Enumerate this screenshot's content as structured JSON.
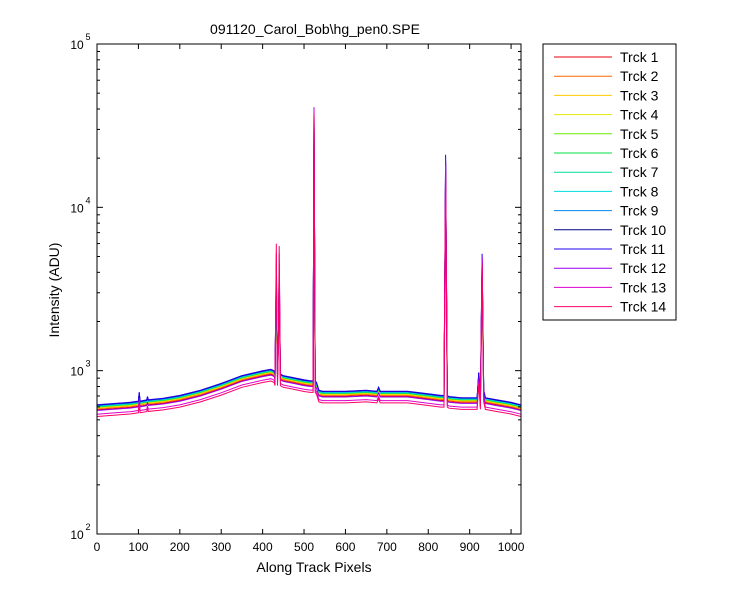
{
  "chart_data": {
    "type": "line",
    "title": "091120_Carol_Bob\\hg_pen0.SPE",
    "xlabel": "Along Track Pixels",
    "ylabel": "Intensity (ADU)",
    "xlim": [
      0,
      1024
    ],
    "ylim": [
      100,
      100000
    ],
    "yscale": "log",
    "grid": false,
    "legend_position": "outside-right",
    "x_ticks": [
      0,
      100,
      200,
      300,
      400,
      500,
      600,
      700,
      800,
      900,
      1000
    ],
    "x_tick_labels": [
      "0",
      "100",
      "200",
      "300",
      "400",
      "500",
      "600",
      "700",
      "800",
      "900",
      "1000"
    ],
    "y_ticks": [
      {
        "value": 100,
        "base": "10",
        "exp": "2"
      },
      {
        "value": 1000,
        "base": "10",
        "exp": "3"
      },
      {
        "value": 10000,
        "base": "10",
        "exp": "4"
      },
      {
        "value": 100000,
        "base": "10",
        "exp": "5"
      }
    ],
    "x": [
      0,
      40,
      80,
      100,
      102,
      104,
      120,
      122,
      124,
      160,
      200,
      250,
      300,
      350,
      400,
      420,
      428,
      430,
      433,
      436,
      438,
      440,
      443,
      446,
      450,
      470,
      500,
      515,
      522,
      524,
      527,
      530,
      536,
      545,
      560,
      600,
      650,
      676,
      680,
      684,
      700,
      750,
      800,
      830,
      838,
      842,
      846,
      850,
      880,
      918,
      922,
      926,
      930,
      934,
      938,
      960,
      1000,
      1024
    ],
    "series": [
      {
        "name": "Trck 1",
        "color": "#e8000b",
        "scale": 1.01,
        "peaks": {
          "433": 3600,
          "440": 3600,
          "524": 38000,
          "842": 17000,
          "930": 4500
        }
      },
      {
        "name": "Trck 2",
        "color": "#ff6600",
        "scale": 1.025,
        "peaks": {
          "433": 3000,
          "440": 3000,
          "524": 30000,
          "842": 14000,
          "930": 3800
        }
      },
      {
        "name": "Trck 3",
        "color": "#ffcc00",
        "scale": 1.035,
        "peaks": {
          "433": 2700,
          "440": 2700,
          "524": 25000,
          "842": 12500,
          "930": 3500
        }
      },
      {
        "name": "Trck 4",
        "color": "#e6e600",
        "scale": 1.045,
        "peaks": {
          "433": 2600,
          "440": 2600,
          "524": 24000,
          "842": 12000,
          "930": 3300
        }
      },
      {
        "name": "Trck 5",
        "color": "#66ee00",
        "scale": 1.05,
        "peaks": {
          "433": 2700,
          "440": 2700,
          "524": 25000,
          "842": 12500,
          "930": 3400
        }
      },
      {
        "name": "Trck 6",
        "color": "#00e040",
        "scale": 1.055,
        "peaks": {
          "433": 2900,
          "440": 2900,
          "524": 27000,
          "842": 13500,
          "930": 3700
        }
      },
      {
        "name": "Trck 7",
        "color": "#00dd99",
        "scale": 1.06,
        "peaks": {
          "433": 3100,
          "440": 3100,
          "524": 29000,
          "842": 14500,
          "930": 3900
        }
      },
      {
        "name": "Trck 8",
        "color": "#00dddd",
        "scale": 1.065,
        "peaks": {
          "433": 3300,
          "440": 3300,
          "524": 31000,
          "842": 15500,
          "930": 4100
        }
      },
      {
        "name": "Trck 9",
        "color": "#0088ee",
        "scale": 1.075,
        "peaks": {
          "433": 3600,
          "440": 3600,
          "524": 34000,
          "842": 17500,
          "930": 4600
        }
      },
      {
        "name": "Trck 10",
        "color": "#000088",
        "scale": 1.08,
        "peaks": {
          "433": 3900,
          "440": 3900,
          "524": 37000,
          "842": 19000,
          "930": 4900
        }
      },
      {
        "name": "Trck 11",
        "color": "#2200ee",
        "scale": 1.085,
        "peaks": {
          "433": 4200,
          "440": 4200,
          "524": 40000,
          "842": 21000,
          "930": 5200
        }
      },
      {
        "name": "Trck 12",
        "color": "#9900ee",
        "scale": 1.0,
        "peaks": {
          "433": 4500,
          "440": 4500,
          "524": 41000,
          "842": 20000,
          "930": 5000
        }
      },
      {
        "name": "Trck 13",
        "color": "#dd00cc",
        "scale": 0.95,
        "peaks": {
          "433": 5200,
          "440": 5200,
          "524": 40000,
          "842": 18000,
          "930": 4800
        }
      },
      {
        "name": "Trck 14",
        "color": "#ff0066",
        "scale": 0.92,
        "peaks": {
          "433": 6000,
          "440": 5800,
          "524": 37000,
          "842": 16000,
          "930": 4500
        }
      }
    ],
    "baseline": [
      570,
      580,
      590,
      600,
      680,
      600,
      610,
      640,
      612,
      625,
      650,
      700,
      770,
      860,
      920,
      940,
      920,
      880,
      1500,
      880,
      1500,
      880,
      880,
      870,
      860,
      840,
      810,
      800,
      800,
      1200,
      800,
      780,
      700,
      690,
      690,
      690,
      700,
      690,
      730,
      690,
      690,
      690,
      665,
      650,
      650,
      700,
      650,
      640,
      630,
      630,
      900,
      630,
      630,
      700,
      630,
      615,
      590,
      570
    ]
  }
}
